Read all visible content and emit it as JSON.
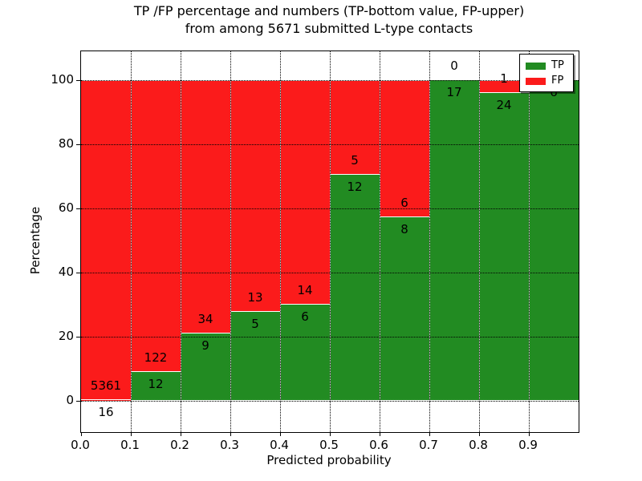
{
  "title": {
    "line1": "TP /FP percentage and numbers (TP-bottom value, FP-upper)",
    "line2": "from among 5671 submitted L-type contacts"
  },
  "chart_data": {
    "type": "bar",
    "stacked": true,
    "normalized_to_percent": true,
    "title": "TP /FP percentage and numbers (TP-bottom value, FP-upper) from among 5671 submitted L-type contacts",
    "xlabel": "Predicted probability",
    "ylabel": "Percentage",
    "total_contacts": 5671,
    "categories": [
      "0.0-0.1",
      "0.1-0.2",
      "0.2-0.3",
      "0.3-0.4",
      "0.4-0.5",
      "0.5-0.6",
      "0.6-0.7",
      "0.7-0.8",
      "0.8-0.9",
      "0.9-1.0"
    ],
    "bin_edges": [
      0.0,
      0.1,
      0.2,
      0.3,
      0.4,
      0.5,
      0.6,
      0.7,
      0.8,
      0.9,
      1.0
    ],
    "series": [
      {
        "name": "TP",
        "color": "#228b22",
        "counts": [
          16,
          12,
          9,
          5,
          6,
          12,
          8,
          17,
          24,
          6
        ]
      },
      {
        "name": "FP",
        "color": "#fb1b1b",
        "counts": [
          5361,
          122,
          34,
          13,
          14,
          5,
          6,
          0,
          1,
          0
        ]
      }
    ],
    "tp_percentages": [
      0.3,
      8.96,
      20.93,
      27.78,
      30.0,
      70.59,
      57.14,
      100.0,
      96.0,
      100.0
    ],
    "xlim": [
      0.0,
      1.0
    ],
    "ylim": [
      -9.75,
      109.0
    ],
    "xtick_labels": [
      "0.0",
      "0.1",
      "0.2",
      "0.3",
      "0.4",
      "0.5",
      "0.6",
      "0.7",
      "0.8",
      "0.9"
    ],
    "xtick_values": [
      0.0,
      0.1,
      0.2,
      0.3,
      0.4,
      0.5,
      0.6,
      0.7,
      0.8,
      0.9
    ],
    "ytick_labels": [
      "0",
      "20",
      "40",
      "60",
      "80",
      "100"
    ],
    "ytick_values": [
      0,
      20,
      40,
      60,
      80,
      100
    ],
    "grid": true,
    "grid_style": "dotted",
    "bar_edge_color": "#ffffff",
    "legend": {
      "position": "upper right",
      "entries": [
        {
          "label": "TP",
          "color": "#228b22"
        },
        {
          "label": "FP",
          "color": "#fb1b1b"
        }
      ]
    }
  }
}
